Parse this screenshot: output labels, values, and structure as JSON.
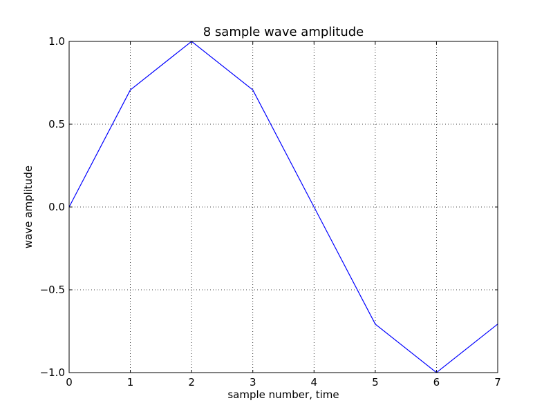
{
  "chart_data": {
    "type": "line",
    "title": "8 sample wave amplitude",
    "xlabel": "sample number, time",
    "ylabel": "wave amplitude",
    "xlim": [
      0,
      7
    ],
    "ylim": [
      -1.0,
      1.0
    ],
    "x_ticks": [
      0,
      1,
      2,
      3,
      4,
      5,
      6,
      7
    ],
    "x_tick_labels": [
      "0",
      "1",
      "2",
      "3",
      "4",
      "5",
      "6",
      "7"
    ],
    "y_ticks": [
      -1.0,
      -0.5,
      0.0,
      0.5,
      1.0
    ],
    "y_tick_labels": [
      "−1.0",
      "−0.5",
      "0.0",
      "0.5",
      "1.0"
    ],
    "grid": true,
    "series": [
      {
        "color": "#0000ff",
        "x": [
          0,
          1,
          2,
          3,
          4,
          5,
          6,
          7
        ],
        "y": [
          0.0,
          0.707,
          1.0,
          0.707,
          0.0,
          -0.707,
          -1.0,
          -0.707
        ]
      }
    ]
  }
}
